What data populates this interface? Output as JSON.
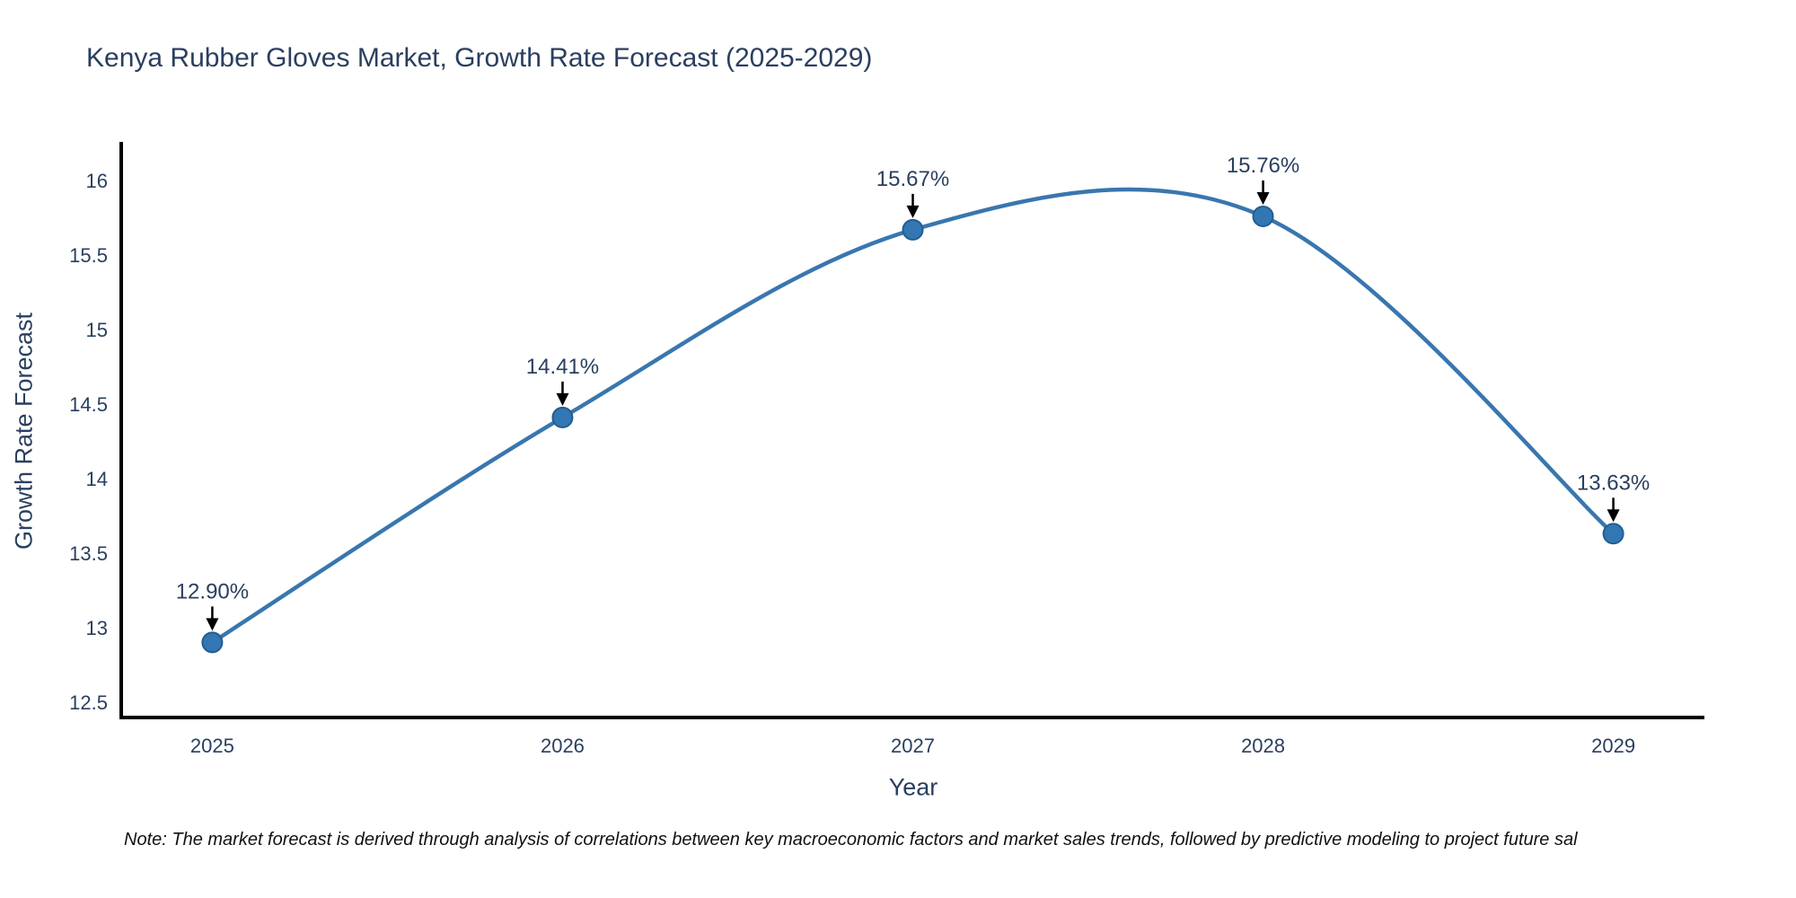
{
  "page": {
    "background": "#ffffff"
  },
  "chart": {
    "title": "Kenya Rubber Gloves Market, Growth Rate Forecast (2025-2029)",
    "xlabel": "Year",
    "ylabel": "Growth Rate Forecast",
    "note": "Note: The market forecast is derived through analysis of correlations between key macroeconomic factors and market sales trends, followed by predictive modeling to project future sal"
  },
  "chart_data": {
    "type": "line",
    "title": "Kenya Rubber Gloves Market, Growth Rate Forecast (2025-2029)",
    "xlabel": "Year",
    "ylabel": "Growth Rate Forecast",
    "categories": [
      "2025",
      "2026",
      "2027",
      "2028",
      "2029"
    ],
    "x": [
      2025,
      2026,
      2027,
      2028,
      2029
    ],
    "values": [
      12.9,
      14.41,
      15.67,
      15.76,
      13.63
    ],
    "point_labels": [
      "12.90%",
      "14.41%",
      "15.67%",
      "15.76%",
      "13.63%"
    ],
    "line_shape": "spline",
    "grid": false,
    "legend": "none",
    "xlim": [
      2024.74,
      2029.26
    ],
    "ylim": [
      12.39,
      16.26
    ],
    "yticks": {
      "values": [
        12.5,
        13,
        13.5,
        14,
        14.5,
        15,
        15.5,
        16
      ],
      "labels": [
        "12.5",
        "13",
        "13.5",
        "14",
        "14.5",
        "15",
        "15.5",
        "16"
      ]
    },
    "colors": {
      "line": "#3976af",
      "marker_fill": "#3276b3",
      "marker_edge": "#235d8f",
      "arrow": "#000000",
      "annotation_text": "#2a3f5f",
      "tick_text": "#2a3f5f",
      "axis_line": "#000000"
    }
  }
}
